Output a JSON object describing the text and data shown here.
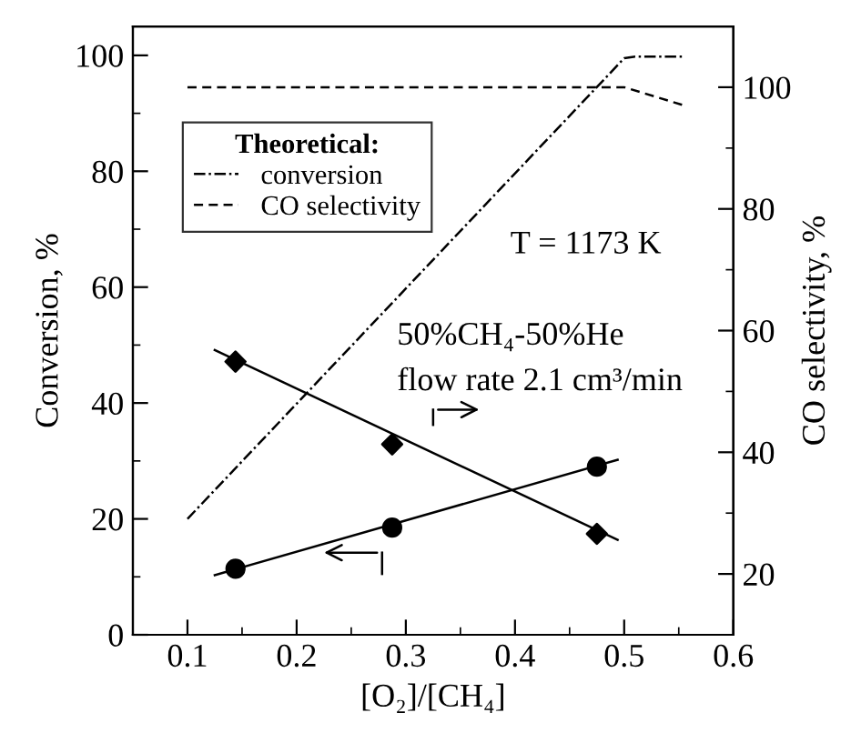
{
  "chart_data": {
    "type": "scatter",
    "xlabel": "[O₂]/[CH₄]",
    "ylabel": "Conversion, %",
    "y2label": "CO selectivity, %",
    "legend_title": "Theoretical:",
    "legend": "top left",
    "grid": false,
    "xlim": [
      0.05,
      0.6
    ],
    "xticks": [
      0.1,
      0.2,
      0.3,
      0.4,
      0.5,
      0.6
    ],
    "ylim": [
      0,
      105
    ],
    "yticks": [
      0,
      20,
      40,
      60,
      80,
      100
    ],
    "y2lim": [
      10,
      110
    ],
    "y2ticks": [
      20,
      40,
      60,
      80,
      100
    ],
    "series": [
      {
        "type": "line",
        "name": "conversion",
        "color": "#000000",
        "line_style": "dashdot",
        "marker": "none",
        "x": [
          0.1,
          0.5,
          0.51,
          0.555
        ],
        "values": [
          20,
          99.5,
          99.8,
          99.8
        ]
      },
      {
        "type": "line",
        "name": "CO selectivity",
        "color": "#000000",
        "line_style": "dashed",
        "marker": "none",
        "axis": "y2",
        "x": [
          0.1,
          0.5,
          0.555
        ],
        "values": [
          100,
          100,
          97
        ]
      },
      {
        "color": "#000000",
        "marker": "circle",
        "x": [
          0.144,
          0.2875,
          0.475
        ],
        "values": [
          11.4,
          18.5,
          29
        ]
      },
      {
        "type": "line",
        "color": "#000000",
        "line_style": "solid",
        "marker": "none",
        "x": [
          0.125,
          0.494
        ],
        "values": [
          10.3,
          30.2
        ]
      },
      {
        "color": "#000000",
        "marker": "diamond",
        "axis": "y2",
        "x": [
          0.144,
          0.2875,
          0.475
        ],
        "values": [
          54.9,
          41.3,
          26.6
        ]
      },
      {
        "type": "line",
        "color": "#000000",
        "line_style": "solid",
        "marker": "none",
        "axis": "y2",
        "x": [
          0.125,
          0.494
        ],
        "values": [
          56.8,
          25.6
        ]
      }
    ],
    "annotations": [
      "T = 1173 K",
      "50%CH₄-50%He",
      "flow rate 2.1 cm³/min"
    ]
  }
}
